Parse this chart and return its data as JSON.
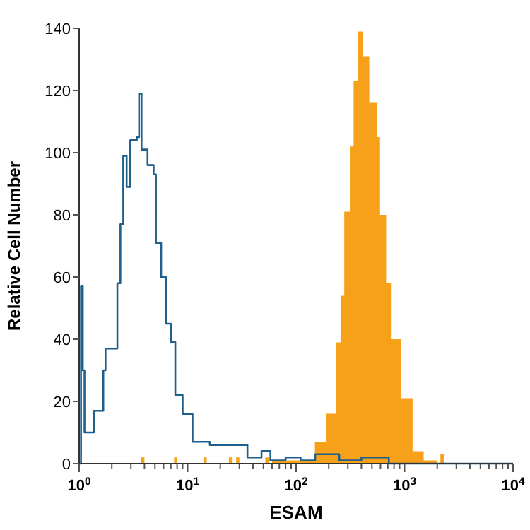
{
  "chart_data": {
    "type": "area",
    "xlabel": "ESAM",
    "ylabel": "Relative Cell Number",
    "log": "x",
    "grid": false,
    "xlim": [
      1,
      10000
    ],
    "ylim": [
      0,
      140
    ],
    "xticks": [
      {
        "value": 1,
        "label": "10$^{0}$"
      },
      {
        "value": 2,
        "label": null
      },
      {
        "value": 3,
        "label": null
      },
      {
        "value": 4,
        "label": null
      },
      {
        "value": 5,
        "label": null
      },
      {
        "value": 6,
        "label": null
      },
      {
        "value": 7,
        "label": null
      },
      {
        "value": 8,
        "label": null
      },
      {
        "value": 9,
        "label": null
      },
      {
        "value": 10,
        "label": "10$^{1}$"
      },
      {
        "value": 20,
        "label": null
      },
      {
        "value": 30,
        "label": null
      },
      {
        "value": 40,
        "label": null
      },
      {
        "value": 50,
        "label": null
      },
      {
        "value": 60,
        "label": null
      },
      {
        "value": 70,
        "label": null
      },
      {
        "value": 80,
        "label": null
      },
      {
        "value": 90,
        "label": null
      },
      {
        "value": 100,
        "label": "10$^{2}$"
      },
      {
        "value": 200,
        "label": null
      },
      {
        "value": 300,
        "label": null
      },
      {
        "value": 400,
        "label": null
      },
      {
        "value": 500,
        "label": null
      },
      {
        "value": 600,
        "label": null
      },
      {
        "value": 700,
        "label": null
      },
      {
        "value": 800,
        "label": null
      },
      {
        "value": 900,
        "label": null
      },
      {
        "value": 1000,
        "label": "10$^{3}$"
      },
      {
        "value": 2000,
        "label": null
      },
      {
        "value": 3000,
        "label": null
      },
      {
        "value": 4000,
        "label": null
      },
      {
        "value": 5000,
        "label": null
      },
      {
        "value": 6000,
        "label": null
      },
      {
        "value": 7000,
        "label": null
      },
      {
        "value": 8000,
        "label": null
      },
      {
        "value": 9000,
        "label": null
      },
      {
        "value": 10000,
        "label": "10$^{4}$"
      }
    ],
    "yticks": [
      0,
      20,
      40,
      60,
      80,
      100,
      120,
      140
    ],
    "series": [
      {
        "color": "#f7a11a",
        "x": [
          1,
          3.5,
          3.7,
          4,
          7,
          7.5,
          8,
          13,
          14,
          15,
          22,
          24,
          26,
          28,
          30,
          32,
          48,
          52,
          56,
          60,
          100,
          149,
          190,
          233,
          257,
          278,
          313,
          339,
          373,
          412,
          473,
          554,
          594,
          676,
          760,
          927,
          1186,
          1500,
          2000,
          2140,
          2300,
          10000
        ],
        "values": [
          0,
          0,
          2,
          0,
          0,
          2,
          0,
          0,
          2,
          0,
          0,
          2,
          0,
          2,
          0,
          0,
          0,
          2,
          0,
          1,
          1,
          7,
          16,
          39,
          54,
          81,
          102,
          123,
          139,
          131,
          116,
          105,
          80,
          58,
          40,
          21,
          4,
          1,
          0,
          3,
          0,
          0
        ]
      },
      {
        "type": "step",
        "color": "#1f5f8b",
        "x": [
          1,
          1.04,
          1.08,
          1.12,
          1.37,
          1.67,
          1.75,
          2.25,
          2.4,
          2.55,
          2.74,
          2.96,
          3.4,
          3.57,
          3.76,
          4.27,
          4.86,
          5.1,
          5.7,
          6.3,
          7,
          7.7,
          9,
          11.1,
          16,
          22.9,
          35.6,
          48,
          58,
          80,
          110,
          150,
          250,
          400,
          600,
          716,
          10000
        ],
        "values": [
          0,
          57,
          30,
          10,
          17,
          30,
          37,
          58,
          77,
          99,
          89,
          104,
          105,
          119,
          101,
          96,
          93,
          71,
          60,
          45,
          39,
          22,
          16,
          7,
          6,
          6,
          2,
          4,
          1,
          2,
          1,
          3,
          1,
          2,
          2,
          0,
          0
        ]
      }
    ]
  }
}
